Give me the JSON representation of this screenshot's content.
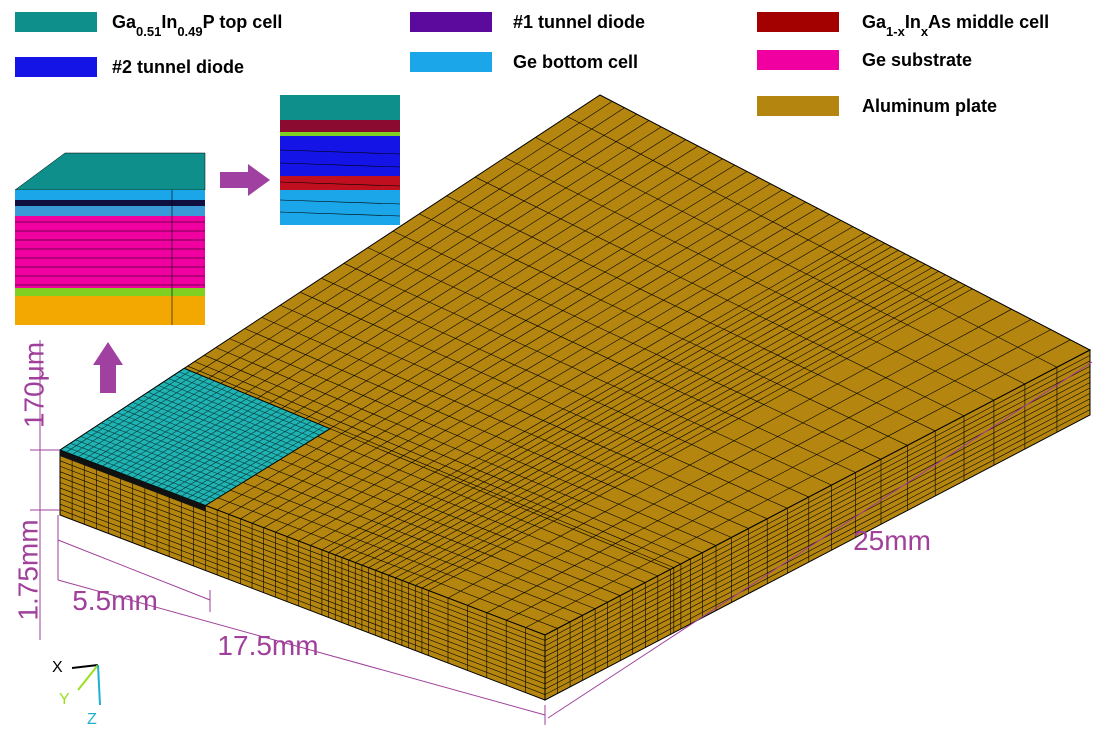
{
  "legend": [
    {
      "color": "#0f8f8c",
      "label": [
        {
          "text": "Ga"
        },
        {
          "text": "0.51",
          "sub": true
        },
        {
          "text": "In"
        },
        {
          "text": "0.49",
          "sub": true
        },
        {
          "text": "P top cell"
        }
      ]
    },
    {
      "color": "#5c0a9e",
      "label": [
        {
          "text": "#1 tunnel diode"
        }
      ]
    },
    {
      "color": "#a30000",
      "label": [
        {
          "text": "Ga"
        },
        {
          "text": "1-x",
          "sub": true
        },
        {
          "text": "In"
        },
        {
          "text": "x",
          "sub": true
        },
        {
          "text": "As middle cell"
        }
      ]
    },
    {
      "color": "#1414e6",
      "label": [
        {
          "text": "#2 tunnel diode"
        }
      ]
    },
    {
      "color": "#1aa6e8",
      "label": [
        {
          "text": "Ge bottom cell"
        }
      ]
    },
    {
      "color": "#f000a0",
      "label": [
        {
          "text": "Ge substrate"
        }
      ]
    },
    {
      "color": "#b5860f",
      "label": [
        {
          "text": "Aluminum plate"
        }
      ]
    }
  ],
  "dimensions": {
    "top_cell_thickness": "170μm",
    "plate_thickness": "1.75mm",
    "cell_width": "5.5mm",
    "plate_width": "17.5mm",
    "plate_length": "25mm"
  },
  "axes": {
    "x": "X",
    "y": "Y",
    "z": "Z"
  }
}
